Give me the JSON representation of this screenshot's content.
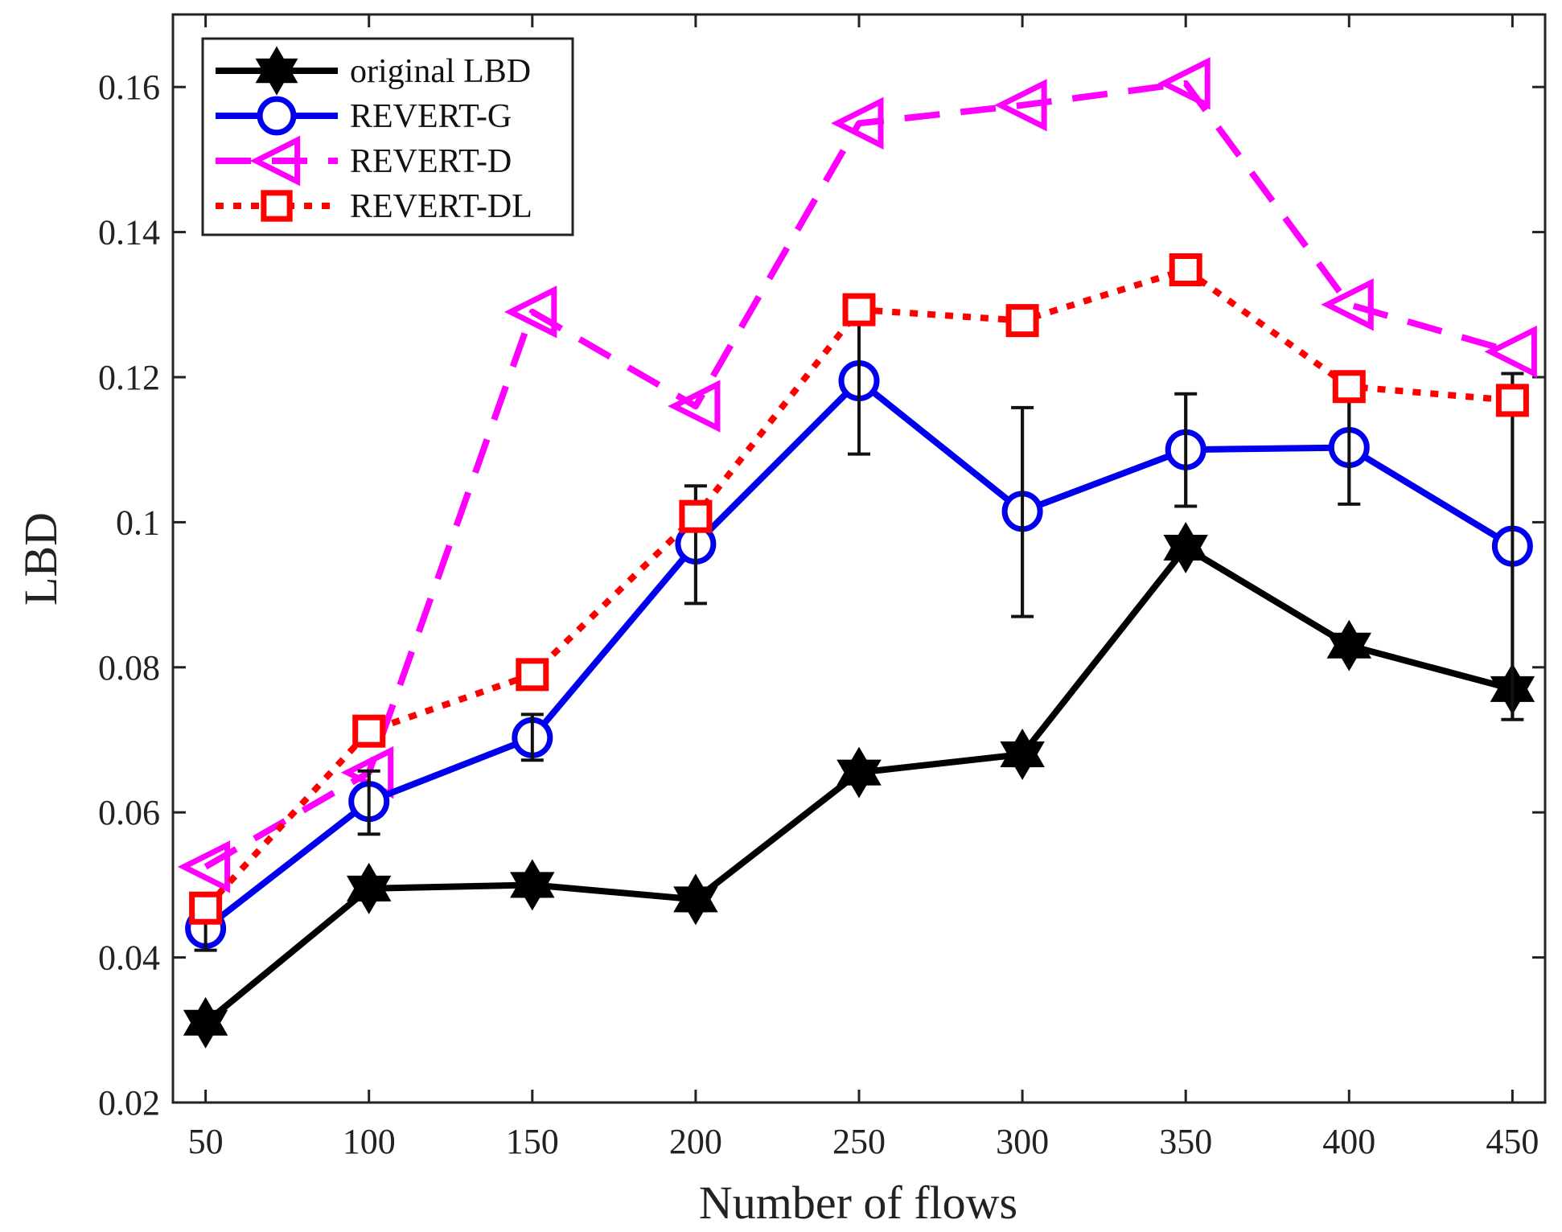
{
  "chart_data": {
    "type": "line",
    "title": "",
    "xlabel": "Number of flows",
    "ylabel": "LBD",
    "x": [
      50,
      100,
      150,
      200,
      250,
      300,
      350,
      400,
      450
    ],
    "x_tick_labels": [
      "50",
      "100",
      "150",
      "200",
      "250",
      "300",
      "350",
      "400",
      "450"
    ],
    "y_tick_labels": [
      "0.02",
      "0.04",
      "0.06",
      "0.08",
      "0.1",
      "0.12",
      "0.14",
      "0.16"
    ],
    "y_ticks": [
      0.02,
      0.04,
      0.06,
      0.08,
      0.1,
      0.12,
      0.14,
      0.16
    ],
    "xlim": [
      40,
      460
    ],
    "ylim": [
      0.02,
      0.17
    ],
    "legend_position": "top-left",
    "series": [
      {
        "name": "original LBD",
        "color": "#000000",
        "marker": "hexagram",
        "line_style": "solid",
        "values": [
          0.031,
          0.0495,
          0.05,
          0.048,
          0.0655,
          0.068,
          0.0965,
          0.083,
          0.077
        ],
        "error_bars": null
      },
      {
        "name": "REVERT-G",
        "color": "#0000ee",
        "marker": "circle",
        "line_style": "solid",
        "values": [
          0.044,
          0.0615,
          0.0703,
          0.097,
          0.1195,
          0.1015,
          0.11,
          0.1103,
          0.0967
        ],
        "error_bars": [
          [
            0.041,
            0.047
          ],
          [
            0.057,
            0.0657
          ],
          [
            0.0672,
            0.0735
          ],
          [
            0.0888,
            0.105
          ],
          [
            0.1094,
            0.129
          ],
          [
            0.087,
            0.1158
          ],
          [
            0.1022,
            0.1177
          ],
          [
            0.1025,
            0.1182
          ],
          [
            0.0728,
            0.1205
          ]
        ]
      },
      {
        "name": "REVERT-D",
        "color": "#ff00ff",
        "marker": "triangle-left",
        "line_style": "dashed",
        "values": [
          0.0525,
          0.0655,
          0.129,
          0.116,
          0.155,
          0.1575,
          0.1605,
          0.13,
          0.1235
        ],
        "error_bars": null
      },
      {
        "name": "REVERT-DL",
        "color": "#ff0000",
        "marker": "square",
        "line_style": "dotted",
        "values": [
          0.0468,
          0.0712,
          0.079,
          0.1008,
          0.1293,
          0.1278,
          0.1348,
          0.1187,
          0.1168
        ],
        "error_bars": null
      }
    ]
  }
}
